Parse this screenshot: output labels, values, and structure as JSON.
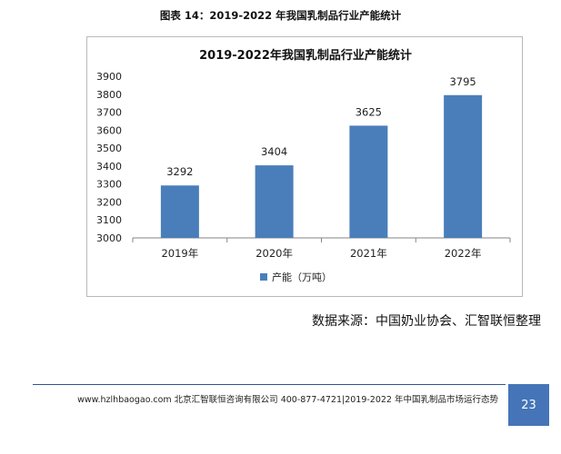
{
  "caption": "图表 14：2019-2022 年我国乳制品行业产能统计",
  "source": "数据来源：中国奶业协会、汇智联恒整理",
  "footer": {
    "text": "www.hzlhbaogao.com 北京汇智联恒咨询有限公司 400-877-4721|2019-2022 年中国乳制品市场运行态势",
    "page_number": "23"
  },
  "colors": {
    "bar": "#4a7ebb",
    "frame": "#b9b9b9",
    "footer_accent": "#4575b8"
  },
  "chart_data": {
    "type": "bar",
    "title": "2019-2022年我国乳制品行业产能统计",
    "categories": [
      "2019年",
      "2020年",
      "2021年",
      "2022年"
    ],
    "series": [
      {
        "name": "产能（万吨）",
        "values": [
          3292,
          3404,
          3625,
          3795
        ]
      }
    ],
    "ylim": [
      3000,
      3900
    ],
    "yticks": [
      3000,
      3100,
      3200,
      3300,
      3400,
      3500,
      3600,
      3700,
      3800,
      3900
    ],
    "xlabel": "",
    "ylabel": "",
    "grid": false,
    "legend": "bottom"
  }
}
